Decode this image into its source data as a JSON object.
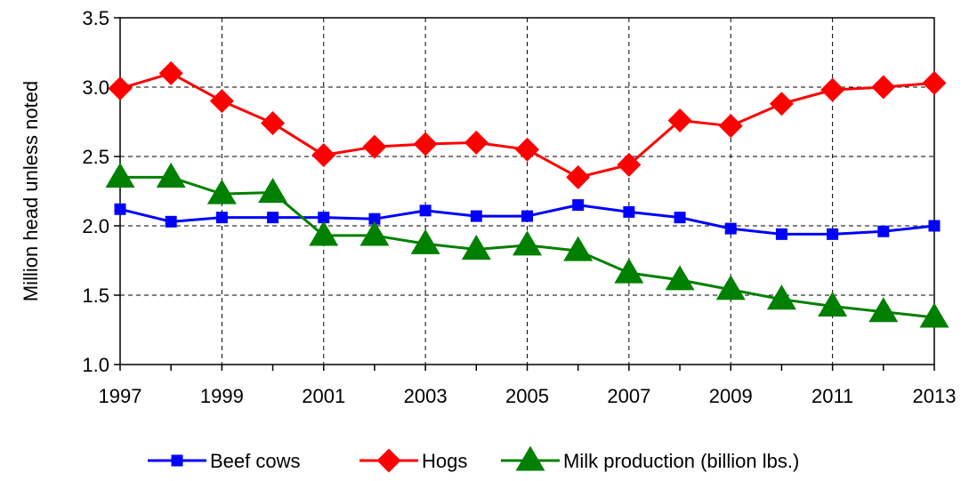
{
  "chart_data": {
    "type": "line",
    "title": "",
    "xlabel": "",
    "ylabel": "Million head unless noted",
    "x": [
      1997,
      1998,
      1999,
      2000,
      2001,
      2002,
      2003,
      2004,
      2005,
      2006,
      2007,
      2008,
      2009,
      2010,
      2011,
      2012,
      2013
    ],
    "x_tick_labels": [
      "1997",
      "1999",
      "2001",
      "2003",
      "2005",
      "2007",
      "2009",
      "2011",
      "2013"
    ],
    "y_tick_labels": [
      "1.0",
      "1.5",
      "2.0",
      "2.5",
      "3.0",
      "3.5"
    ],
    "xlim": [
      1997,
      2013
    ],
    "ylim": [
      1.0,
      3.5
    ],
    "grid": true,
    "legend_position": "bottom",
    "series": [
      {
        "name": "Beef cows",
        "color": "#0000ff",
        "marker": "square",
        "values": [
          2.12,
          2.03,
          2.06,
          2.06,
          2.06,
          2.05,
          2.11,
          2.07,
          2.07,
          2.15,
          2.1,
          2.06,
          1.98,
          1.94,
          1.94,
          1.96,
          2.0
        ]
      },
      {
        "name": "Hogs",
        "color": "#ff0000",
        "marker": "diamond",
        "values": [
          2.99,
          3.1,
          2.9,
          2.74,
          2.51,
          2.57,
          2.59,
          2.6,
          2.55,
          2.35,
          2.44,
          2.76,
          2.72,
          2.88,
          2.98,
          3.0,
          3.03
        ]
      },
      {
        "name": "Milk production (billion lbs.)",
        "color": "#008000",
        "marker": "triangle",
        "values": [
          2.35,
          2.35,
          2.23,
          2.24,
          1.93,
          1.93,
          1.87,
          1.83,
          1.86,
          1.82,
          1.66,
          1.61,
          1.54,
          1.47,
          1.42,
          1.38,
          1.34
        ]
      }
    ]
  }
}
